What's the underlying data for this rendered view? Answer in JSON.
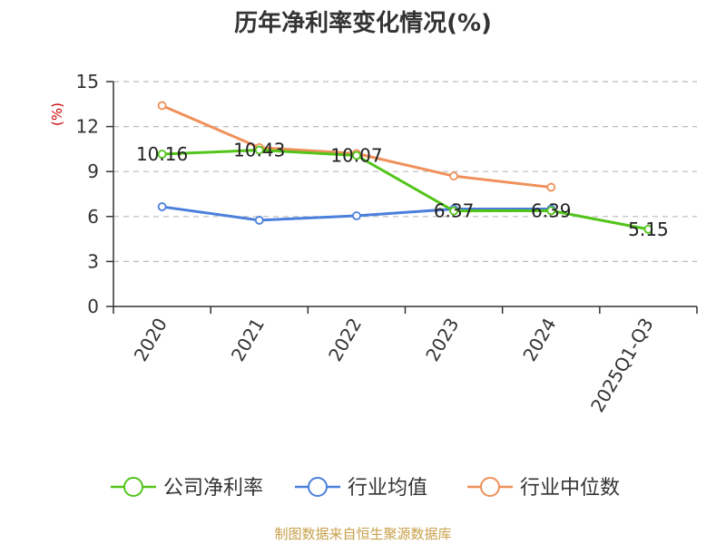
{
  "chart_data": {
    "type": "line",
    "title": "历年净利率变化情况(%)",
    "ylabel": "(%)",
    "xlabel": "",
    "categories": [
      "2020",
      "2021",
      "2022",
      "2023",
      "2024",
      "2025Q1-Q3"
    ],
    "ylim": [
      0,
      15
    ],
    "yticks": [
      0,
      3,
      6,
      9,
      12,
      15
    ],
    "grid": true,
    "legend_position": "bottom",
    "series": [
      {
        "name": "公司净利率",
        "color": "#52c41a",
        "values": [
          10.16,
          10.43,
          10.07,
          6.37,
          6.39,
          5.15
        ],
        "labels": [
          "10.16",
          "10.43",
          "10.07",
          "6.37",
          "6.39",
          "5.15"
        ]
      },
      {
        "name": "行业均值",
        "color": "#4a7fdc",
        "values": [
          6.65,
          5.75,
          6.05,
          6.5,
          6.5,
          null
        ]
      },
      {
        "name": "行业中位数",
        "color": "#f0905a",
        "values": [
          13.4,
          10.6,
          10.2,
          8.7,
          7.95,
          null
        ]
      }
    ]
  },
  "colors": {
    "axis": "#333333",
    "grid": "#bbbbbb",
    "ylabel": "#cc0000",
    "source": "#c8a04a"
  },
  "source_text": "制图数据来自恒生聚源数据库"
}
